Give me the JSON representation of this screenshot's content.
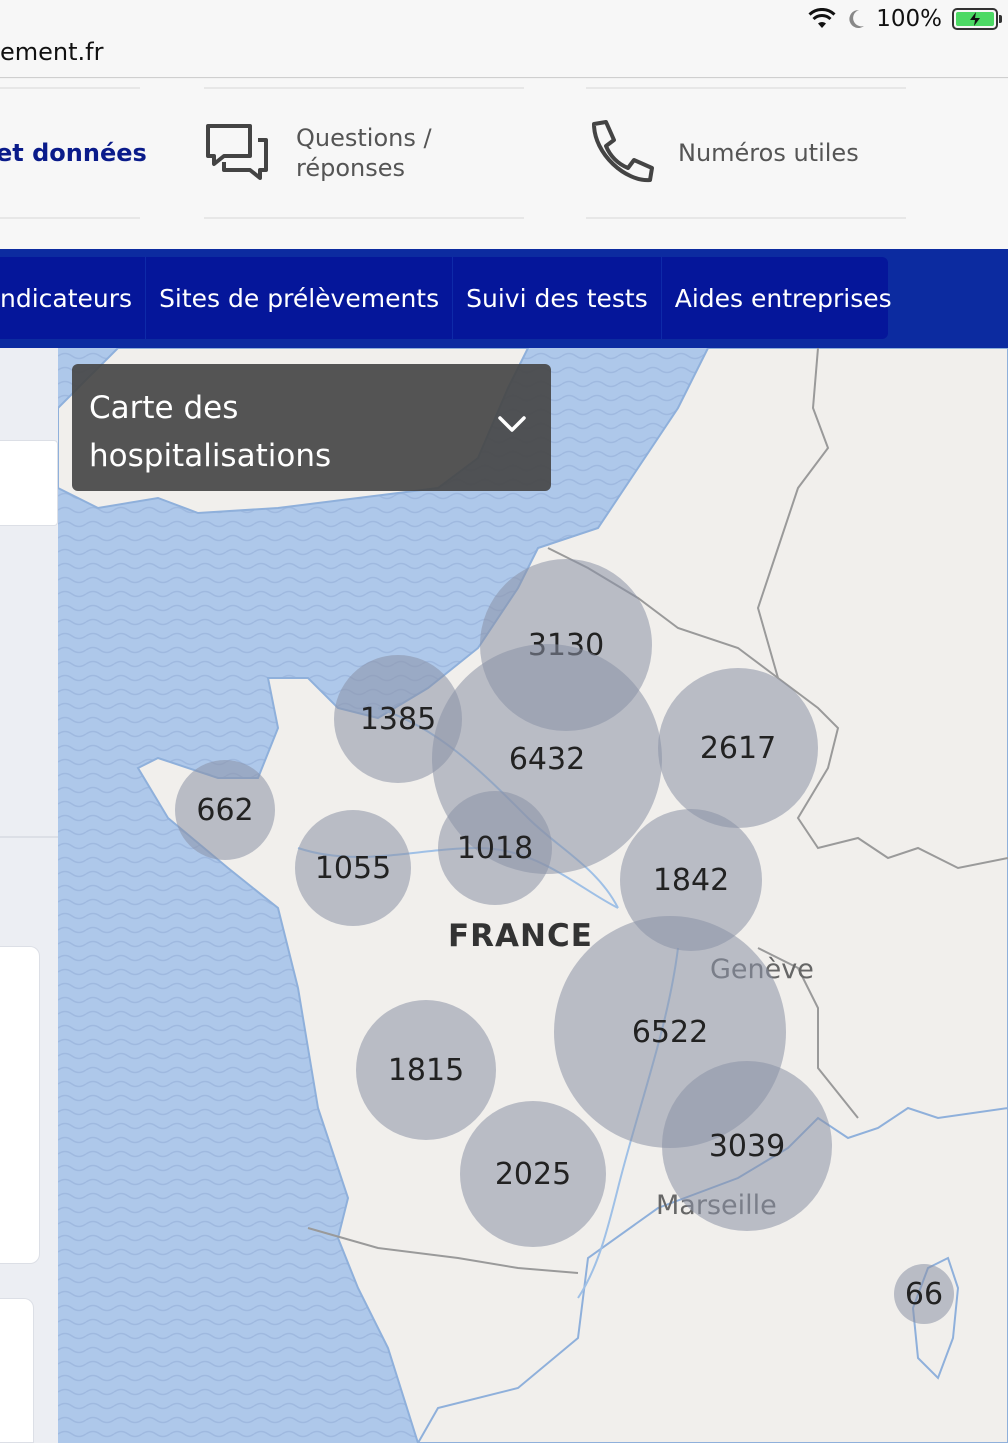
{
  "status_bar": {
    "url_fragment": "ement.fr",
    "battery_percent": "100%",
    "icons": [
      "wifi-icon",
      "moon-icon",
      "battery-charging-icon"
    ]
  },
  "header": {
    "tile_data_label": "et données",
    "tile_questions_label_line1": "Questions /",
    "tile_questions_label_line2": "réponses",
    "tile_numbers_label": "Numéros utiles"
  },
  "nav": {
    "items": [
      {
        "label": "ndicateurs"
      },
      {
        "label": "Sites de prélèvements"
      },
      {
        "label": "Suivi des tests"
      },
      {
        "label": "Aides entreprises"
      }
    ]
  },
  "map": {
    "selector": {
      "line1": "Carte des",
      "line2": "hospitalisations"
    },
    "country_label": "FRANCE",
    "city_labels": {
      "geneve": "Genève",
      "marseille": "Marseille"
    },
    "bubbles": [
      {
        "id": "nord",
        "value": "3130"
      },
      {
        "id": "idf",
        "value": "6432"
      },
      {
        "id": "normandie",
        "value": "1385"
      },
      {
        "id": "grand-est",
        "value": "2617"
      },
      {
        "id": "bretagne",
        "value": "662"
      },
      {
        "id": "pays-de-la-loire",
        "value": "1055"
      },
      {
        "id": "centre",
        "value": "1018"
      },
      {
        "id": "bourgogne",
        "value": "1842"
      },
      {
        "id": "auvergne-rhone-alpes",
        "value": "6522"
      },
      {
        "id": "nouvelle-aquitaine",
        "value": "1815"
      },
      {
        "id": "occitanie",
        "value": "2025"
      },
      {
        "id": "paca",
        "value": "3039"
      },
      {
        "id": "corse",
        "value": "66"
      }
    ]
  }
}
